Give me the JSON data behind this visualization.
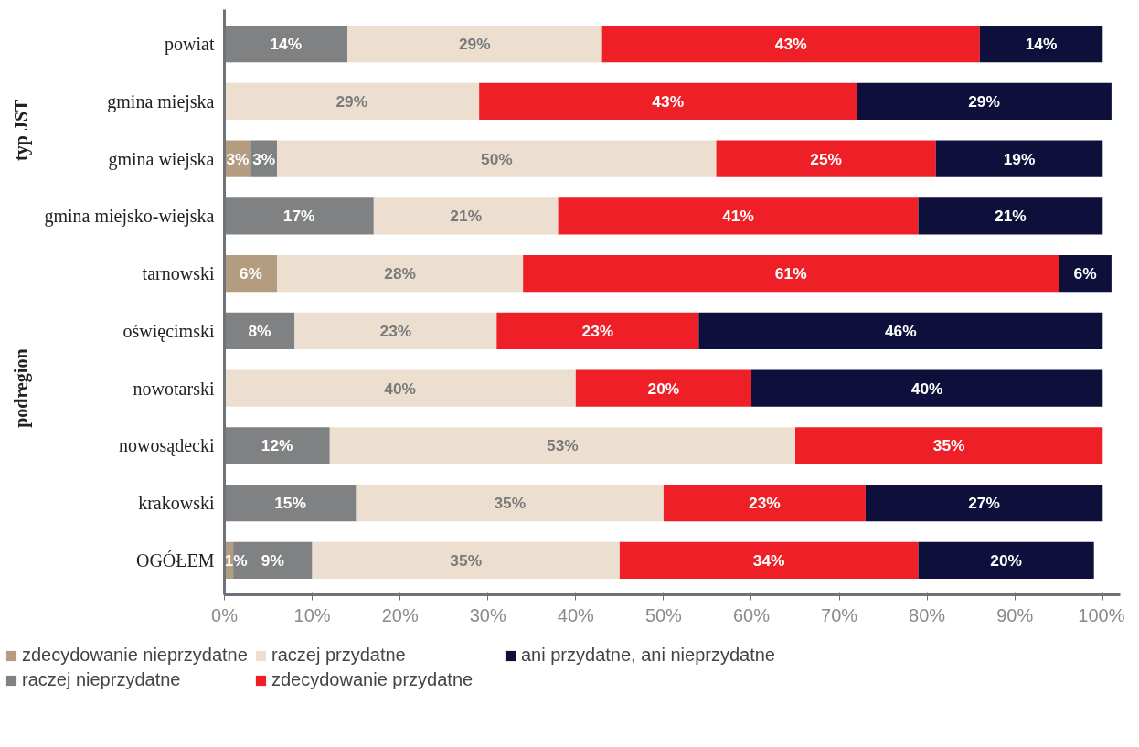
{
  "chart_data": {
    "type": "bar",
    "orientation": "horizontal",
    "stacked": true,
    "legend": "bottom",
    "grid": false,
    "categories": [
      "powiat",
      "gmina miejska",
      "gmina wiejska",
      "gmina miejsko-wiejska",
      "tarnowski",
      "oświęcimski",
      "nowotarski",
      "nowosądecki",
      "krakowski",
      "OGÓŁEM"
    ],
    "series": [
      {
        "name": "zdecydowanie nieprzydatne",
        "color": "#b49c80",
        "values": [
          null,
          null,
          3,
          null,
          6,
          null,
          null,
          null,
          null,
          1
        ],
        "value_labels": [
          null,
          null,
          "3%",
          null,
          "6%",
          null,
          null,
          null,
          null,
          "1%"
        ]
      },
      {
        "name": "raczej nieprzydatne",
        "color": "#7f8183",
        "values": [
          14,
          null,
          3,
          17,
          null,
          8,
          null,
          12,
          15,
          9
        ],
        "value_labels": [
          "14%",
          null,
          "3%",
          "17%",
          null,
          "8%",
          null,
          "12%",
          "15%",
          "9%"
        ]
      },
      {
        "name": "raczej przydatne",
        "color": "#ecdfd0",
        "values": [
          29,
          29,
          50,
          21,
          28,
          23,
          40,
          53,
          35,
          35
        ],
        "value_labels": [
          "29%",
          "29%",
          "50%",
          "21%",
          "28%",
          "23%",
          "40%",
          "53%",
          "35%",
          "35%"
        ]
      },
      {
        "name": "zdecydowanie przydatne",
        "color": "#ee1f26",
        "values": [
          43,
          43,
          25,
          41,
          61,
          23,
          20,
          35,
          23,
          34
        ],
        "value_labels": [
          "43%",
          "43%",
          "25%",
          "41%",
          "61%",
          "23%",
          "20%",
          "35%",
          "23%",
          "34%"
        ]
      },
      {
        "name": "ani przydatne, ani nieprzydatne",
        "color": "#0e0f3b",
        "values": [
          14,
          29,
          19,
          21,
          6,
          46,
          40,
          null,
          27,
          20
        ],
        "value_labels": [
          "14%",
          "29%",
          "19%",
          "21%",
          "6%",
          "46%",
          "40%",
          null,
          "27%",
          "20%"
        ]
      }
    ],
    "xlim": [
      0,
      102
    ],
    "xticks": [
      {
        "value": 0,
        "label": "0%"
      },
      {
        "value": 10,
        "label": "10%"
      },
      {
        "value": 20,
        "label": "20%"
      },
      {
        "value": 30,
        "label": "30%"
      },
      {
        "value": 40,
        "label": "40%"
      },
      {
        "value": 50,
        "label": "50%"
      },
      {
        "value": 60,
        "label": "60%"
      },
      {
        "value": 70,
        "label": "70%"
      },
      {
        "value": 80,
        "label": "80%"
      },
      {
        "value": 90,
        "label": "90%"
      },
      {
        "value": 100,
        "label": "100%"
      }
    ],
    "annotations": [
      "typ JST",
      "podregion"
    ]
  }
}
